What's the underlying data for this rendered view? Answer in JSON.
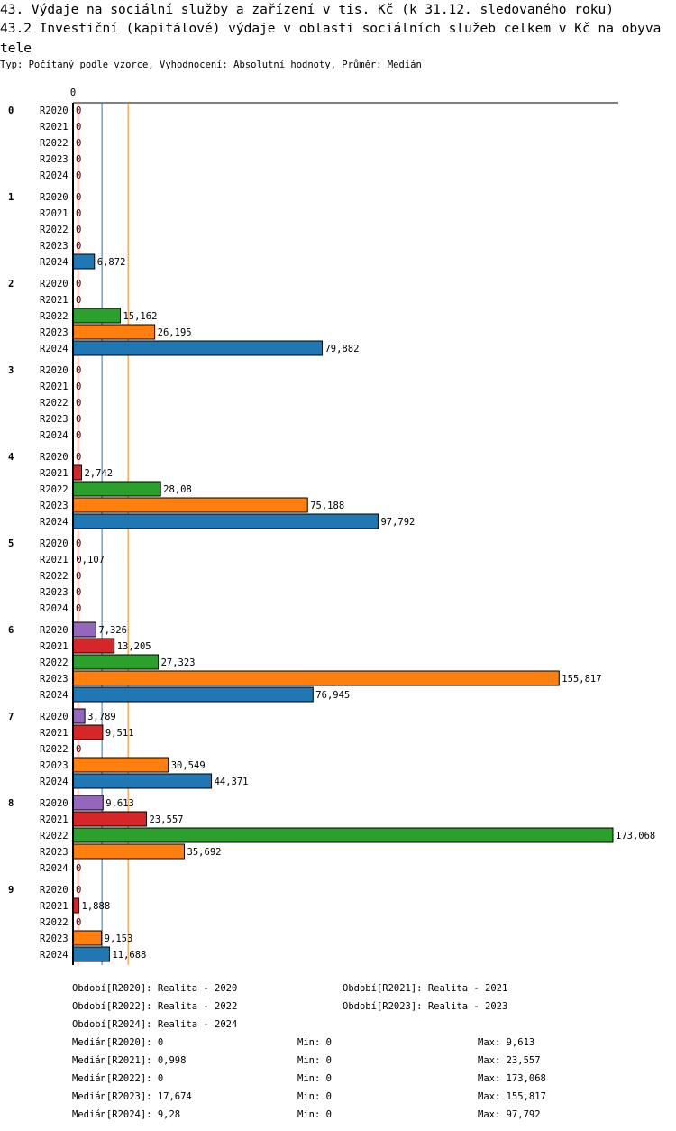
{
  "title": "43. Výdaje na sociální služby a zařízení v tis. Kč (k 31.12. sledovaného roku)",
  "subtitle": "43.2 Investiční (kapitálové) výdaje v oblasti sociálních služeb celkem v Kč na obyvatele",
  "info": "Typ: Počítaný podle vzorce, Vyhodnocení: Absolutní hodnoty, Průměr: Medián",
  "chart_data": {
    "type": "bar",
    "orientation": "horizontal",
    "x_tick_labels": [
      "0"
    ],
    "xlim": [
      0,
      173.068
    ],
    "groups": [
      "0",
      "1",
      "2",
      "3",
      "4",
      "5",
      "6",
      "7",
      "8",
      "9"
    ],
    "series": [
      {
        "name": "R2020",
        "color": "#9467bd",
        "values": [
          0,
          0,
          0,
          0,
          0,
          0,
          7.326,
          3.789,
          9.613,
          0
        ],
        "labels": [
          "0",
          "0",
          "0",
          "0",
          "0",
          "0",
          "7,326",
          "3,789",
          "9,613",
          "0"
        ]
      },
      {
        "name": "R2021",
        "color": "#d62728",
        "values": [
          0,
          0,
          0,
          0,
          2.742,
          0.107,
          13.205,
          9.511,
          23.557,
          1.888
        ],
        "labels": [
          "0",
          "0",
          "0",
          "0",
          "2,742",
          "0,107",
          "13,205",
          "9,511",
          "23,557",
          "1,888"
        ]
      },
      {
        "name": "R2022",
        "color": "#2ca02c",
        "values": [
          0,
          0,
          15.162,
          0,
          28.08,
          0,
          27.323,
          0,
          173.068,
          0
        ],
        "labels": [
          "0",
          "0",
          "15,162",
          "0",
          "28,08",
          "0",
          "27,323",
          "0",
          "173,068",
          "0"
        ]
      },
      {
        "name": "R2023",
        "color": "#ff7f0e",
        "values": [
          0,
          0,
          26.195,
          0,
          75.188,
          0,
          155.817,
          30.549,
          35.692,
          9.153
        ],
        "labels": [
          "0",
          "0",
          "26,195",
          "0",
          "75,188",
          "0",
          "155,817",
          "30,549",
          "35,692",
          "9,153"
        ]
      },
      {
        "name": "R2024",
        "color": "#1f77b4",
        "values": [
          0,
          6.872,
          79.882,
          0,
          97.792,
          0,
          76.945,
          44.371,
          0,
          11.688
        ],
        "labels": [
          "0",
          "6,872",
          "79,882",
          "0",
          "97,792",
          "0",
          "76,945",
          "44,371",
          "0",
          "11,688"
        ]
      }
    ],
    "median_lines": [
      {
        "series": "R2021",
        "value": 0.998,
        "color": "#d62728"
      },
      {
        "series": "R2024",
        "value": 9.28,
        "color": "#1f77b4"
      },
      {
        "series": "R2023",
        "value": 17.674,
        "color": "#ff7f0e"
      }
    ]
  },
  "legend": {
    "periods": [
      "Období[R2020]: Realita - 2020",
      "Období[R2021]: Realita - 2021",
      "Období[R2022]: Realita - 2022",
      "Období[R2023]: Realita - 2023",
      "Období[R2024]: Realita - 2024"
    ],
    "stats": [
      {
        "median": "Medián[R2020]: 0",
        "min": "Min: 0",
        "max": "Max: 9,613"
      },
      {
        "median": "Medián[R2021]: 0,998",
        "min": "Min: 0",
        "max": "Max: 23,557"
      },
      {
        "median": "Medián[R2022]: 0",
        "min": "Min: 0",
        "max": "Max: 173,068"
      },
      {
        "median": "Medián[R2023]: 17,674",
        "min": "Min: 0",
        "max": "Max: 155,817"
      },
      {
        "median": "Medián[R2024]: 9,28",
        "min": "Min: 0",
        "max": "Max: 97,792"
      }
    ]
  }
}
